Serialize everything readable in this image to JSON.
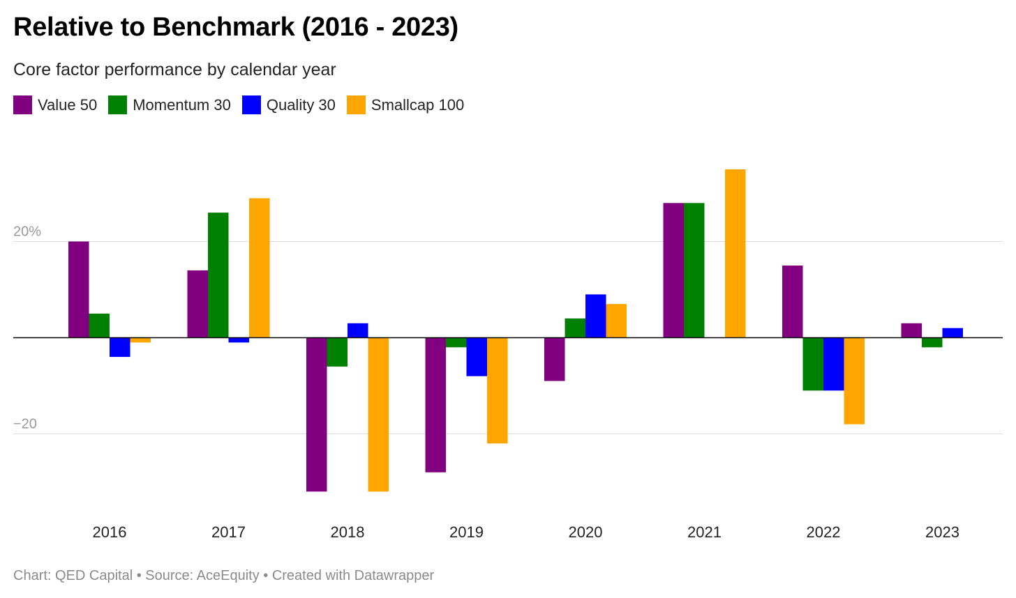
{
  "title": "Relative to Benchmark (2016 - 2023)",
  "subtitle": "Core factor performance by calendar year",
  "footer": "Chart: QED Capital • Source: AceEquity • Created with Datawrapper",
  "chart_data": {
    "type": "bar",
    "categories": [
      "2016",
      "2017",
      "2018",
      "2019",
      "2020",
      "2021",
      "2022",
      "2023"
    ],
    "series": [
      {
        "name": "Value 50",
        "color": "#800080",
        "values": [
          20,
          14,
          -32,
          -28,
          -9,
          28,
          15,
          3
        ]
      },
      {
        "name": "Momentum 30",
        "color": "#008000",
        "values": [
          5,
          26,
          -6,
          -2,
          4,
          28,
          -11,
          -2
        ]
      },
      {
        "name": "Quality 30",
        "color": "#0000ff",
        "values": [
          -4,
          -1,
          3,
          -8,
          9,
          0,
          -11,
          2
        ]
      },
      {
        "name": "Smallcap 100",
        "color": "#ffa500",
        "values": [
          -1,
          29,
          -32,
          -22,
          7,
          35,
          -18,
          0
        ]
      }
    ],
    "y_ticks": [
      {
        "value": 20,
        "label": "20%"
      },
      {
        "value": -20,
        "label": "−20"
      }
    ],
    "ylim": [
      -36,
      40
    ],
    "grid": true,
    "legend": "top-left"
  }
}
